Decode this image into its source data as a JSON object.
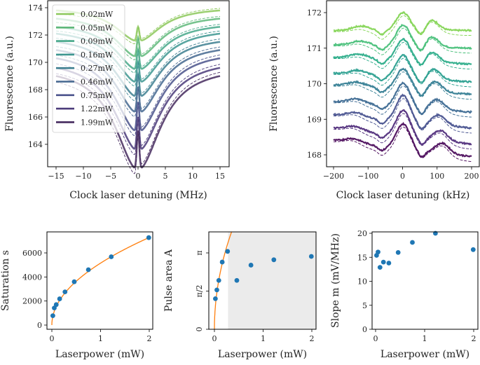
{
  "chart_data": [
    {
      "type": "line",
      "panel": "top-left",
      "xlabel": "Clock laser detuning (MHz)",
      "ylabel": "Fluorescence (a.u.)",
      "xlim": [
        -15.5,
        15.5
      ],
      "ylim": [
        162.5,
        174.6
      ],
      "xticks": [
        -15,
        -10,
        -5,
        0,
        5,
        10,
        15
      ],
      "xtick_labels": [
        "−15",
        "−10",
        "−5",
        "0",
        "5",
        "10",
        "15"
      ],
      "yticks": [
        164,
        166,
        168,
        170,
        172,
        174
      ],
      "legend": {
        "placement": "top-left",
        "entries": [
          "0.02mW",
          "0.05mW",
          "0.09mW",
          "0.16mW",
          "0.27mW",
          "0.46mW",
          "0.75mW",
          "1.22mW",
          "1.99mW"
        ]
      },
      "series": [
        {
          "name": "0.02mW",
          "end_value": 173.8,
          "dip_min": 171.8,
          "center_peak": 172.6,
          "color": "#8cc85a"
        },
        {
          "name": "0.05mW",
          "end_value": 173.2,
          "dip_min": 170.7,
          "center_peak": 171.8,
          "color": "#5fb87a"
        },
        {
          "name": "0.09mW",
          "end_value": 172.6,
          "dip_min": 169.8,
          "center_peak": 170.9,
          "color": "#47a88a"
        },
        {
          "name": "0.16mW",
          "end_value": 172.1,
          "dip_min": 168.9,
          "center_peak": 170.0,
          "color": "#3d9690"
        },
        {
          "name": "0.27mW",
          "end_value": 171.5,
          "dip_min": 167.9,
          "center_peak": 169.1,
          "color": "#3d7f90"
        },
        {
          "name": "0.46mW",
          "end_value": 170.9,
          "dip_min": 166.8,
          "center_peak": 168.2,
          "color": "#44678f"
        },
        {
          "name": "0.75mW",
          "end_value": 170.3,
          "dip_min": 165.5,
          "center_peak": 167.1,
          "color": "#4a528b"
        },
        {
          "name": "1.22mW",
          "end_value": 169.6,
          "dip_min": 164.2,
          "center_peak": 166.0,
          "color": "#4b3b7a"
        },
        {
          "name": "1.99mW",
          "end_value": 169.0,
          "dip_min": 162.9,
          "center_peak": 165.0,
          "color": "#452a5e"
        }
      ],
      "fit_style": "dashed"
    },
    {
      "type": "line",
      "panel": "top-right",
      "xlabel": "Clock laser detuning (kHz)",
      "ylabel": "Fluorescence (a.u.)",
      "xlim": [
        -210,
        210
      ],
      "ylim": [
        167.8,
        172.35
      ],
      "xticks": [
        -200,
        -100,
        0,
        100,
        200
      ],
      "xtick_labels": [
        "−200",
        "−100",
        "0",
        "100",
        "200"
      ],
      "yticks": [
        168,
        169,
        170,
        171,
        172
      ],
      "series": [
        {
          "name": "0.02mW",
          "left": 171.5,
          "right": 171.5,
          "peak": 172.0,
          "side_peak_x": 85,
          "color": "#7ed34e"
        },
        {
          "name": "0.05mW",
          "left": 171.1,
          "right": 171.0,
          "peak": 171.65,
          "side_peak_x": 85,
          "color": "#3fbc73"
        },
        {
          "name": "0.09mW",
          "left": 170.75,
          "right": 170.55,
          "peak": 171.25,
          "side_peak_x": 85,
          "color": "#22a884"
        },
        {
          "name": "0.16mW",
          "left": 170.3,
          "right": 170.05,
          "peak": 170.8,
          "side_peak_x": 90,
          "color": "#1f9a8a"
        },
        {
          "name": "0.27mW",
          "left": 169.97,
          "right": 169.7,
          "peak": 170.42,
          "side_peak_x": 95,
          "color": "#2a788e"
        },
        {
          "name": "0.46mW",
          "left": 169.5,
          "right": 169.2,
          "peak": 170.02,
          "side_peak_x": 100,
          "color": "#33638d"
        },
        {
          "name": "0.75mW",
          "left": 169.13,
          "right": 168.75,
          "peak": 169.67,
          "side_peak_x": 105,
          "color": "#3f4a8a"
        },
        {
          "name": "1.22mW",
          "left": 168.75,
          "right": 168.3,
          "peak": 169.25,
          "side_peak_x": 110,
          "color": "#482475"
        },
        {
          "name": "1.99mW",
          "left": 168.4,
          "right": 167.95,
          "peak": 168.87,
          "side_peak_x": 115,
          "color": "#440154"
        }
      ],
      "fit_style": "dashed"
    },
    {
      "type": "scatter",
      "panel": "bottom-left",
      "xlabel": "Laserpower (mW)",
      "ylabel": "Saturation s",
      "xlim": [
        -0.1,
        2.1
      ],
      "ylim": [
        -300,
        7600
      ],
      "xticks": [
        0,
        1,
        2
      ],
      "yticks": [
        0,
        2000,
        4000,
        6000
      ],
      "x": [
        0.02,
        0.05,
        0.09,
        0.16,
        0.27,
        0.46,
        0.75,
        1.22,
        1.99
      ],
      "y": [
        780,
        1420,
        1700,
        2180,
        2760,
        3600,
        4600,
        5680,
        7270
      ],
      "fit": {
        "model": "s = a*sqrt(P)",
        "a": 5150,
        "color": "#ff7f0e"
      },
      "point_color": "#1f77b4"
    },
    {
      "type": "scatter",
      "panel": "bottom-middle",
      "xlabel": "Laserpower (mW)",
      "ylabel": "Pulse area A",
      "xlim": [
        -0.1,
        2.1
      ],
      "ylim_pi": [
        0,
        1.27
      ],
      "xticks": [
        0,
        1,
        2
      ],
      "yticks_pi": [
        0,
        0.5,
        1
      ],
      "ytick_labels": [
        "0",
        "π/2",
        "π"
      ],
      "x": [
        0.02,
        0.05,
        0.09,
        0.16,
        0.27,
        0.46,
        0.75,
        1.22,
        1.99
      ],
      "y_pi": [
        0.4,
        0.515,
        0.64,
        0.88,
        1.02,
        0.64,
        0.84,
        0.91,
        0.954
      ],
      "fit": {
        "model": "A = k*sqrt(P) π",
        "k": 2.15,
        "color": "#ff7f0e"
      },
      "shaded_region_x_from": 0.28,
      "shade_color": "#ebebeb",
      "point_color": "#1f77b4"
    },
    {
      "type": "scatter",
      "panel": "bottom-right",
      "xlabel": "Laserpower (mW)",
      "ylabel": "Slope m (mV/MHz)",
      "xlim": [
        -0.1,
        2.1
      ],
      "ylim": [
        0,
        20.4
      ],
      "xticks": [
        0,
        1,
        2
      ],
      "yticks": [
        0,
        5,
        10,
        15,
        20
      ],
      "x": [
        0.02,
        0.05,
        0.09,
        0.16,
        0.27,
        0.46,
        0.75,
        1.22,
        1.99
      ],
      "y": [
        15.4,
        16.1,
        12.9,
        14.0,
        13.8,
        16.0,
        18.1,
        20.0,
        16.6
      ],
      "point_color": "#1f77b4"
    }
  ]
}
